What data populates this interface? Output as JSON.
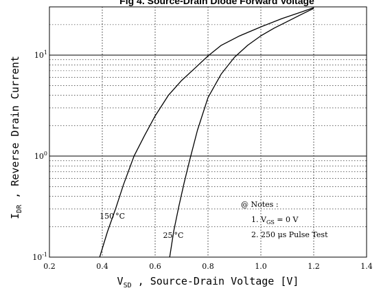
{
  "chart_data": {
    "type": "line",
    "title": "Fig 4.  Source-Drain Diode Forward Voltage",
    "xlabel": {
      "main": "V",
      "sub": "SD",
      "rest": " , Source-Drain Voltage  [V]"
    },
    "ylabel": {
      "main": "I",
      "sub": "DR",
      "rest": " ,  Reverse Drain Current"
    },
    "xlim": [
      0.2,
      1.4
    ],
    "ylim": [
      0.1,
      30
    ],
    "yscale": "log",
    "grid": "major solid, minor dotted",
    "x_ticks": [
      {
        "value": 0.2,
        "label": "0.2"
      },
      {
        "value": 0.4,
        "label": "0.4"
      },
      {
        "value": 0.6,
        "label": "0.6"
      },
      {
        "value": 0.8,
        "label": "0.8"
      },
      {
        "value": 1.0,
        "label": "1.0"
      },
      {
        "value": 1.2,
        "label": "1.2"
      },
      {
        "value": 1.4,
        "label": "1.4"
      }
    ],
    "y_ticks": [
      {
        "value": 0.1,
        "base": "10",
        "exp": "-1"
      },
      {
        "value": 1,
        "base": "10",
        "exp": "0"
      },
      {
        "value": 10,
        "base": "10",
        "exp": "1"
      }
    ],
    "series": [
      {
        "label_main": "150",
        "label_unit": "°C",
        "x": [
          0.39,
          0.42,
          0.45,
          0.48,
          0.52,
          0.56,
          0.6,
          0.65,
          0.7,
          0.75,
          0.8,
          0.85,
          0.92,
          1.0,
          1.08,
          1.15,
          1.2
        ],
        "y": [
          0.1,
          0.18,
          0.3,
          0.52,
          1.0,
          1.6,
          2.5,
          4.0,
          5.6,
          7.4,
          9.8,
          12.5,
          15.5,
          19.0,
          23.0,
          26.5,
          29.5
        ]
      },
      {
        "label_main": "25",
        "label_unit": "°C",
        "x": [
          0.655,
          0.67,
          0.69,
          0.71,
          0.73,
          0.76,
          0.8,
          0.85,
          0.9,
          0.95,
          1.0,
          1.05,
          1.1,
          1.15,
          1.2
        ],
        "y": [
          0.1,
          0.18,
          0.32,
          0.55,
          0.9,
          1.8,
          3.8,
          6.5,
          9.5,
          12.5,
          15.5,
          18.5,
          21.5,
          25.0,
          29.0
        ]
      }
    ],
    "notes": {
      "header": "@ Notes :",
      "line1_prefix": "1.  V",
      "line1_sub": "GS",
      "line1_rest": " = 0 V",
      "line2": "2.  250 μs Pulse Test"
    }
  }
}
